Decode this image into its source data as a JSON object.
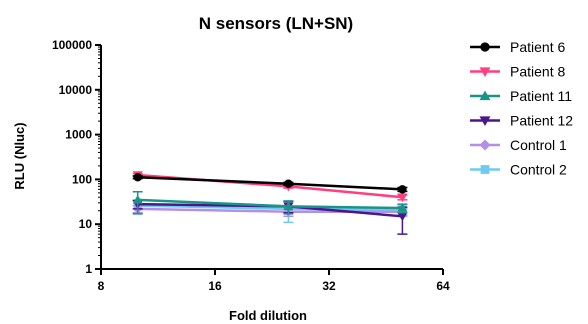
{
  "chart_data": {
    "type": "line",
    "title": "N sensors (LN+SN)",
    "xlabel": "Fold dilution",
    "ylabel": "RLU (Nluc)",
    "x_scale": "log2",
    "y_scale": "log10",
    "xlim": [
      8,
      64
    ],
    "ylim": [
      1,
      100000
    ],
    "x_ticks": [
      8,
      16,
      32,
      64
    ],
    "x_tick_labels": [
      "8",
      "16",
      "32",
      "64"
    ],
    "y_ticks": [
      1,
      10,
      100,
      1000,
      10000,
      100000
    ],
    "y_tick_labels": [
      "1",
      "10",
      "100",
      "1000",
      "10000",
      "100000"
    ],
    "grid": false,
    "legend_position": "right",
    "x": [
      10,
      25,
      50
    ],
    "series": [
      {
        "name": "Patient 6",
        "color": "#000000",
        "marker": "circle",
        "values": [
          112,
          80,
          60
        ],
        "err": [
          8,
          6,
          6
        ]
      },
      {
        "name": "Patient 8",
        "color": "#ff3f7f",
        "marker": "triangle-down",
        "values": [
          125,
          70,
          40
        ],
        "err": [
          10,
          6,
          5
        ]
      },
      {
        "name": "Patient 11",
        "color": "#1a9487",
        "marker": "triangle-up",
        "values": [
          35,
          25,
          23
        ],
        "err": [
          18,
          8,
          5
        ]
      },
      {
        "name": "Patient 12",
        "color": "#4b168c",
        "marker": "triangle-down",
        "values": [
          28,
          25,
          15
        ],
        "err": [
          6,
          7,
          9
        ]
      },
      {
        "name": "Control 1",
        "color": "#b58ee8",
        "marker": "diamond",
        "values": [
          22,
          19,
          19
        ],
        "err": [
          4,
          4,
          3
        ]
      },
      {
        "name": "Control 2",
        "color": "#6fcbee",
        "marker": "square",
        "values": [
          26,
          22,
          21
        ],
        "err": [
          8,
          11,
          6
        ]
      }
    ]
  }
}
